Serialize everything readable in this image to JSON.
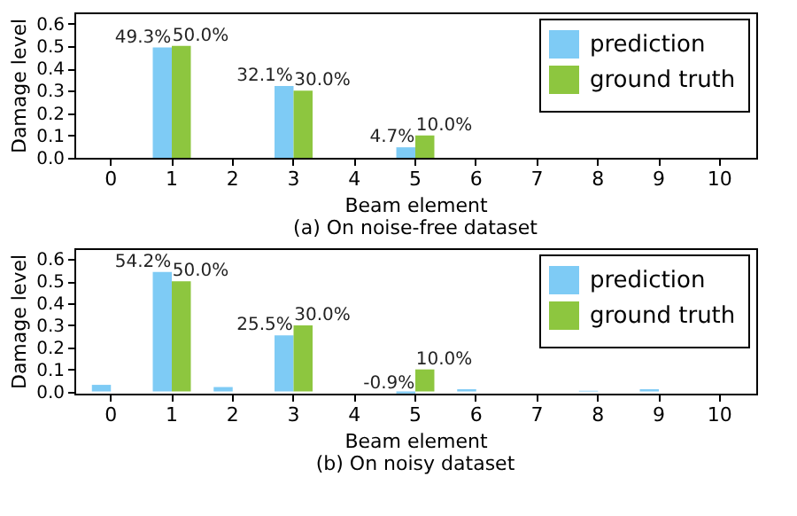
{
  "chart_data": [
    {
      "type": "bar",
      "title": "(a) On noise-free dataset",
      "xlabel": "Beam element",
      "ylabel": "Damage level",
      "categories": [
        "0",
        "1",
        "2",
        "3",
        "4",
        "5",
        "6",
        "7",
        "8",
        "9",
        "10"
      ],
      "ylim": [
        0,
        0.65
      ],
      "yticks": [
        {
          "value": 0,
          "label": "0.0"
        },
        0.1,
        0.2,
        0.3,
        0.4,
        0.5,
        0.6
      ],
      "grid": false,
      "legend": "top right",
      "series": [
        {
          "name": "prediction",
          "color": "#7ecbf5",
          "values": [
            0,
            0.493,
            0,
            0.321,
            0,
            0.047,
            0,
            0,
            0,
            0,
            0
          ],
          "value_labels": [
            null,
            "49.3%",
            null,
            "32.1%",
            null,
            "4.7%",
            null,
            null,
            null,
            null,
            null
          ]
        },
        {
          "name": "ground truth",
          "color": "#8dc63f",
          "values": [
            0,
            0.5,
            0,
            0.3,
            0,
            0.1,
            0,
            0,
            0,
            0,
            0
          ],
          "value_labels": [
            null,
            "50.0%",
            null,
            "30.0%",
            null,
            "10.0%",
            null,
            null,
            null,
            null,
            null
          ]
        }
      ]
    },
    {
      "type": "bar",
      "title": "(b) On noisy dataset",
      "xlabel": "Beam element",
      "ylabel": "Damage level",
      "categories": [
        "0",
        "1",
        "2",
        "3",
        "4",
        "5",
        "6",
        "7",
        "8",
        "9",
        "10"
      ],
      "ylim": [
        -0.01,
        0.65
      ],
      "yticks": [
        {
          "value": 0,
          "label": "0.0"
        },
        0.1,
        0.2,
        0.3,
        0.4,
        0.5,
        0.6
      ],
      "grid": false,
      "legend": "top right",
      "series": [
        {
          "name": "prediction",
          "color": "#7ecbf5",
          "values": [
            0.03,
            0.542,
            0.02,
            0.255,
            0,
            -0.009,
            0.01,
            0,
            0.003,
            0.01,
            0
          ],
          "value_labels": [
            null,
            "54.2%",
            null,
            "25.5%",
            null,
            "-0.9%",
            null,
            null,
            null,
            null,
            null
          ]
        },
        {
          "name": "ground truth",
          "color": "#8dc63f",
          "values": [
            0,
            0.5,
            0,
            0.3,
            0,
            0.1,
            0,
            0,
            0,
            0,
            0
          ],
          "value_labels": [
            null,
            "50.0%",
            null,
            "30.0%",
            null,
            "10.0%",
            null,
            null,
            null,
            null,
            null
          ]
        }
      ]
    }
  ]
}
